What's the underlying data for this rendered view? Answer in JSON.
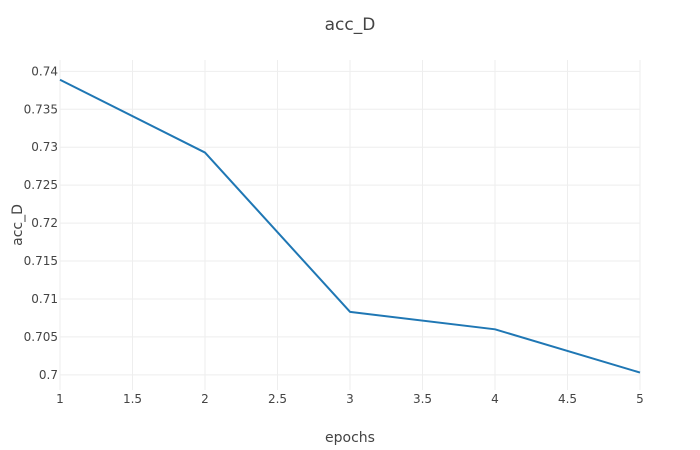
{
  "chart_data": {
    "type": "line",
    "title": "acc_D",
    "xlabel": "epochs",
    "ylabel": "acc_D",
    "x": [
      1,
      2,
      3,
      4,
      5
    ],
    "series": [
      {
        "values": [
          0.7389,
          0.7293,
          0.7083,
          0.706,
          0.7003
        ],
        "color": "#1f77b4"
      }
    ],
    "xlim": [
      1,
      5
    ],
    "ylim": [
      0.698,
      0.7415
    ],
    "xticks": [
      1,
      1.5,
      2,
      2.5,
      3,
      3.5,
      4,
      4.5,
      5
    ],
    "xtick_labels": [
      "1",
      "1.5",
      "2",
      "2.5",
      "3",
      "3.5",
      "4",
      "4.5",
      "5"
    ],
    "yticks": [
      0.7,
      0.705,
      0.71,
      0.715,
      0.72,
      0.725,
      0.73,
      0.735,
      0.74
    ],
    "ytick_labels": [
      "0.7",
      "0.705",
      "0.71",
      "0.715",
      "0.72",
      "0.725",
      "0.73",
      "0.735",
      "0.74"
    ],
    "grid": true,
    "legend": false
  }
}
